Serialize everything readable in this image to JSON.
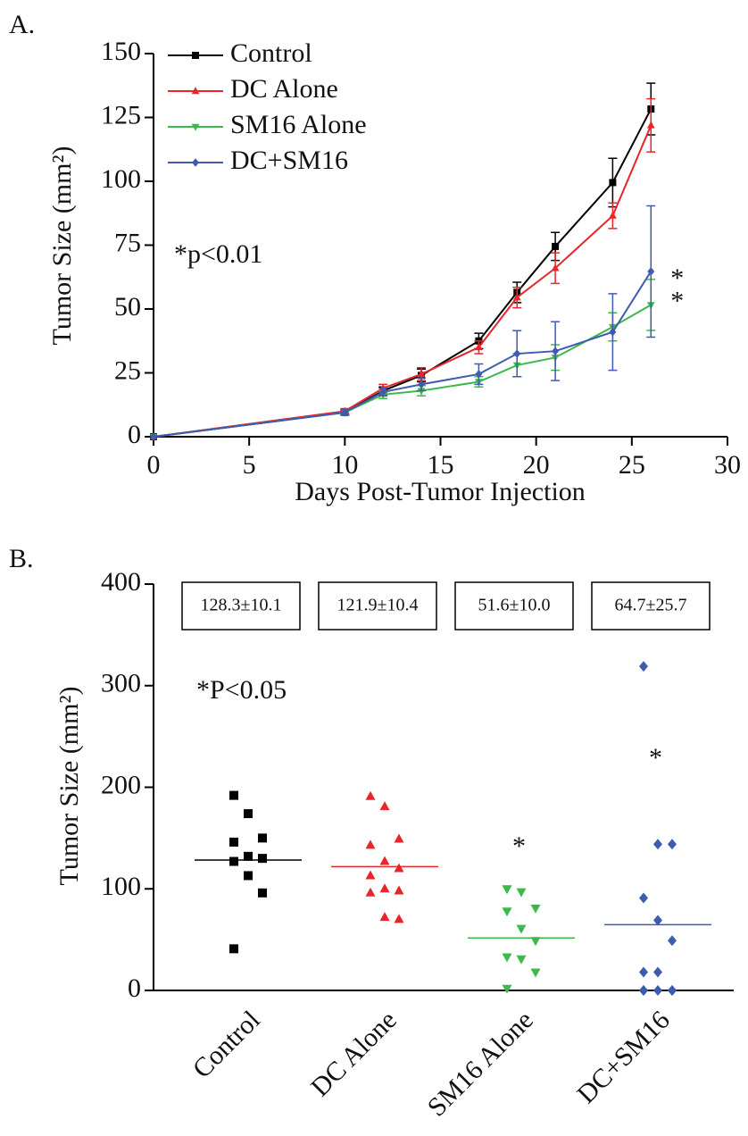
{
  "chart_data": [
    {
      "type": "line",
      "panel_label": "A.",
      "x_label": "Days Post-Tumor Injection",
      "y_label": "Tumor Size (mm²)",
      "x": [
        0,
        10,
        12,
        14,
        17,
        19,
        21,
        24,
        26
      ],
      "xlim": [
        0,
        30
      ],
      "xticks": [
        0,
        5,
        10,
        15,
        20,
        25,
        30
      ],
      "ylim": [
        0,
        150
      ],
      "yticks": [
        0,
        25,
        50,
        75,
        100,
        125,
        150
      ],
      "legend": "upper left",
      "series": [
        {
          "name": "Control",
          "color": "#000000",
          "marker": "square",
          "values": [
            0,
            9.5,
            18,
            24,
            37.5,
            56.5,
            74.5,
            99.5,
            128.3
          ],
          "errors": [
            0,
            1,
            1.5,
            2.5,
            3,
            4,
            5.5,
            9.5,
            10.1
          ]
        },
        {
          "name": "DC Alone",
          "color": "#e8262a",
          "marker": "triangle-up",
          "values": [
            0,
            10,
            19,
            24.5,
            35,
            54.5,
            66,
            86.5,
            121.9
          ],
          "errors": [
            0,
            1,
            1.5,
            2.5,
            2.5,
            4,
            6,
            5,
            10.4
          ]
        },
        {
          "name": "SM16 Alone",
          "color": "#3cb94a",
          "marker": "triangle-down",
          "values": [
            0,
            9.5,
            16.5,
            18,
            21.5,
            28,
            31,
            43,
            51.6
          ],
          "errors": [
            0,
            1,
            1.5,
            2,
            2,
            4.5,
            5,
            5.5,
            10
          ]
        },
        {
          "name": "DC+SM16",
          "color": "#3f5bb0",
          "marker": "diamond",
          "values": [
            0,
            9.5,
            17.5,
            20.5,
            24.5,
            32.5,
            33.5,
            41,
            64.7
          ],
          "errors": [
            0,
            1,
            1.5,
            2.5,
            4,
            9,
            11.5,
            15,
            25.7
          ]
        }
      ],
      "annotations": [
        "*p<0.01",
        "*",
        "*"
      ]
    },
    {
      "type": "dot",
      "panel_label": "B.",
      "y_label": "Tumor Size (mm²)",
      "categories": [
        "Control",
        "DC Alone",
        "SM16 Alone",
        "DC+SM16"
      ],
      "ylim": [
        0,
        400
      ],
      "yticks": [
        0,
        100,
        200,
        300,
        400
      ],
      "groups": [
        {
          "color": "#000000",
          "marker": "square",
          "values": [
            192,
            174,
            150,
            146,
            132,
            130,
            127,
            113,
            96,
            41
          ]
        },
        {
          "color": "#e8262a",
          "marker": "triangle-up",
          "values": [
            191,
            181,
            149,
            143,
            127,
            120,
            113,
            100,
            98,
            96,
            72,
            70
          ]
        },
        {
          "color": "#3cb94a",
          "marker": "triangle-down",
          "values": [
            100,
            97,
            81,
            78,
            61,
            49,
            33,
            31,
            18,
            2
          ]
        },
        {
          "color": "#3f5bb0",
          "marker": "diamond",
          "values": [
            319,
            144,
            144,
            91,
            69,
            49,
            18,
            18,
            0,
            0,
            0,
            0,
            0
          ]
        }
      ],
      "means": [
        128.3,
        121.9,
        51.6,
        64.7
      ],
      "sems": [
        10.1,
        10.4,
        10.0,
        25.7
      ],
      "value_labels": [
        "128.3±10.1",
        "121.9±10.4",
        "51.6±10.0",
        "64.7±25.7"
      ],
      "annotations": [
        "*P<0.05",
        "*",
        "*"
      ]
    }
  ]
}
